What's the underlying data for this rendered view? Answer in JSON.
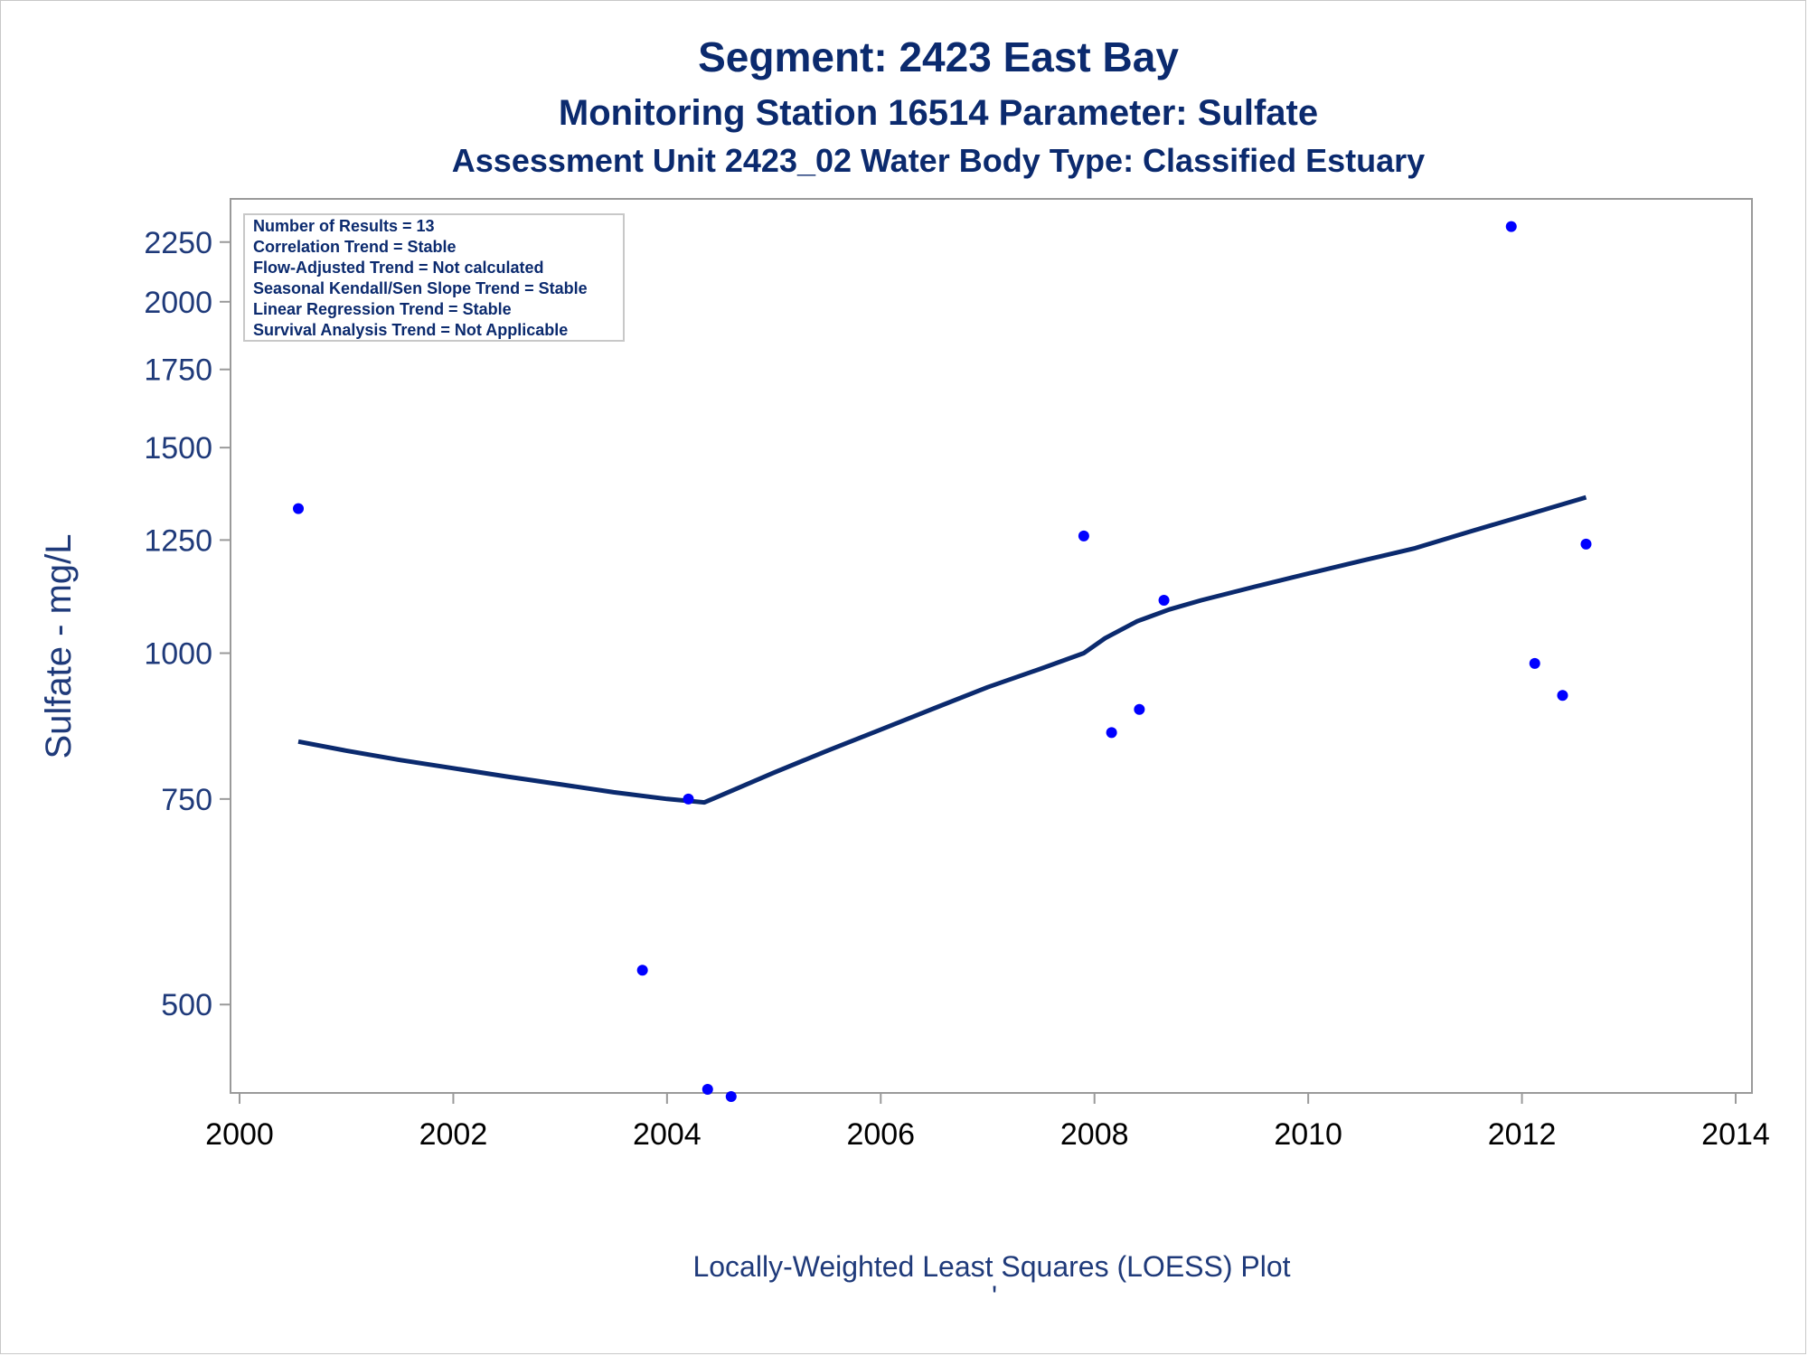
{
  "titles": {
    "line1": "Segment: 2423  East Bay",
    "line2": "Monitoring Station 16514 Parameter: Sulfate",
    "line3": "Assessment Unit 2423_02   Water Body Type: Classified Estuary"
  },
  "stats_box": [
    "Number of Results = 13",
    "Correlation Trend = Stable",
    "Flow-Adjusted Trend = Not calculated",
    "Seasonal Kendall/Sen Slope Trend = Stable",
    "Linear Regression Trend = Stable",
    "Survival Analysis Trend = Not Applicable"
  ],
  "footnote": "Locally-Weighted Least Squares (LOESS) Plot",
  "footnote_mark": "'",
  "colors": {
    "title": "#0b2a6e",
    "axis_text": "#1f3a7a",
    "points": "#0000ff",
    "loess_line": "#0b2a6e",
    "axis_frame": "#9a9a9a"
  },
  "chart_data": {
    "type": "scatter",
    "xlabel": "",
    "ylabel": "Sulfate - mg/L",
    "xlim": [
      2000,
      2014
    ],
    "x_ticks": [
      2000,
      2002,
      2004,
      2006,
      2008,
      2010,
      2012,
      2014
    ],
    "y_scale": "log",
    "ylim": [
      420,
      2450
    ],
    "y_ticks": [
      500,
      750,
      1000,
      1250,
      1500,
      1750,
      2000,
      2250
    ],
    "legend": "none",
    "grid": false,
    "series": [
      {
        "kind": "points",
        "x": [
          2000.55,
          2003.77,
          2004.2,
          2004.38,
          2004.6,
          2007.9,
          2008.16,
          2008.42,
          2008.65,
          2011.9,
          2012.12,
          2012.38,
          2012.6
        ],
        "y": [
          1330,
          535,
          750,
          423,
          417,
          1260,
          855,
          895,
          1110,
          2320,
          980,
          920,
          1240
        ]
      },
      {
        "kind": "loess",
        "x": [
          2000.55,
          2001.0,
          2001.5,
          2002.0,
          2002.5,
          2003.0,
          2003.5,
          2004.0,
          2004.35,
          2004.5,
          2005.0,
          2005.5,
          2006.0,
          2006.5,
          2007.0,
          2007.5,
          2007.9,
          2008.1,
          2008.4,
          2008.7,
          2009.0,
          2009.5,
          2010.0,
          2010.5,
          2011.0,
          2011.5,
          2012.0,
          2012.6
        ],
        "y": [
          840,
          825,
          810,
          797,
          784,
          772,
          760,
          750,
          745,
          755,
          790,
          825,
          860,
          897,
          935,
          970,
          1000,
          1030,
          1065,
          1090,
          1110,
          1140,
          1170,
          1200,
          1230,
          1270,
          1310,
          1360
        ]
      }
    ]
  }
}
